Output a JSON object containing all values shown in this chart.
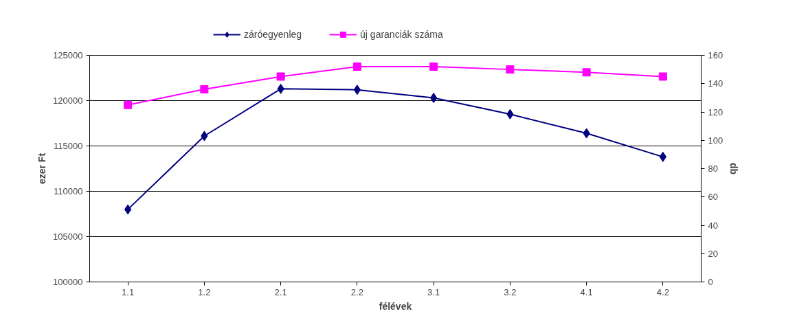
{
  "chart_data": {
    "type": "line",
    "xlabel": "félévek",
    "ylabel": "ezer Ft",
    "y2label": "db",
    "categories": [
      "1.1",
      "1.2",
      "2.1",
      "2.2",
      "3.1",
      "3.2",
      "4.1",
      "4.2"
    ],
    "series": [
      {
        "name": "záróegyenleg",
        "color": "#000080",
        "marker": "diamond",
        "values": [
          108000,
          116100,
          121300,
          121200,
          120300,
          118500,
          116400,
          113800
        ]
      },
      {
        "name": "új garanciák száma",
        "color": "#ff00ff",
        "marker": "square",
        "axis": "y2",
        "values": [
          125,
          136,
          145,
          152,
          152,
          150,
          148,
          145
        ]
      }
    ],
    "ylim": [
      100000,
      125000
    ],
    "yticks": [
      100000,
      105000,
      110000,
      115000,
      120000,
      125000
    ],
    "y2lim": [
      0,
      160
    ],
    "y2ticks": [
      0,
      20,
      40,
      60,
      80,
      100,
      120,
      140,
      160
    ],
    "grid": "y",
    "legend": "top",
    "line_style": "solid"
  }
}
